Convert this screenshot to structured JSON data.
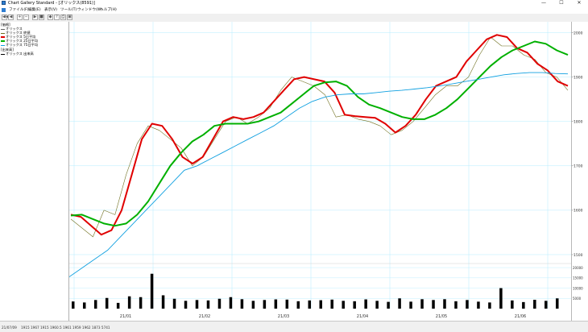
{
  "window": {
    "title": "Chart Gallery Standard - [オリックス(8591)]",
    "controls": {
      "minimize": "—",
      "maximize": "☐",
      "close": "✕"
    }
  },
  "menu": {
    "items": [
      "ファイル(F)",
      "編集(E)",
      "表示(V)",
      "ツール(T)",
      "ウィンドウ(W)",
      "ヘルプ(H)"
    ]
  },
  "toolbar": {
    "buttons": [
      "◀◀",
      "◀",
      "+",
      "−",
      "▶",
      "■",
      "◆",
      "?",
      "⎙",
      "▣"
    ]
  },
  "legend": {
    "price_header": "[価格]",
    "price_items": [
      {
        "label": "オリックス",
        "color": "#606060"
      },
      {
        "label": "オリックス  終値",
        "color": "#707020"
      },
      {
        "label": "オリックス  5日平均",
        "color": "#e00000"
      },
      {
        "label": "オリックス  25日平均",
        "color": "#00b000"
      },
      {
        "label": "オリックス  75日平均",
        "color": "#10a0e0"
      }
    ],
    "volume_header": "[出来高]",
    "volume_items": [
      {
        "label": "オリックス  出来高",
        "color": "#000000"
      }
    ]
  },
  "chart_data": {
    "type": "line",
    "chart_subtype": "candlestick-with-moving-averages",
    "x_tick_labels": [
      "21/01",
      "21/02",
      "21/03",
      "21/04",
      "21/05",
      "21/06"
    ],
    "price_axis_labels": [
      "1500",
      "1600",
      "1700",
      "1800",
      "1900",
      "2000"
    ],
    "volume_axis_labels": [
      "5000",
      "10000",
      "15000",
      "20000"
    ],
    "price_ylim": [
      1480,
      2010
    ],
    "volume_ylim": [
      0,
      22000
    ],
    "series": [
      {
        "name": "オリックス  5日平均",
        "color": "#e00000",
        "values": [
          1590,
          1585,
          1565,
          1545,
          1555,
          1600,
          1680,
          1760,
          1795,
          1790,
          1760,
          1720,
          1705,
          1720,
          1760,
          1800,
          1810,
          1805,
          1810,
          1820,
          1845,
          1870,
          1895,
          1900,
          1895,
          1890,
          1865,
          1815,
          1812,
          1810,
          1808,
          1795,
          1775,
          1790,
          1815,
          1850,
          1880,
          1890,
          1900,
          1935,
          1960,
          1985,
          1995,
          1990,
          1965,
          1955,
          1930,
          1915,
          1890,
          1880
        ]
      },
      {
        "name": "オリックス  25日平均",
        "color": "#00b000",
        "values": [
          1588,
          1590,
          1580,
          1570,
          1565,
          1570,
          1590,
          1620,
          1660,
          1700,
          1730,
          1755,
          1770,
          1790,
          1795,
          1795,
          1795,
          1800,
          1810,
          1820,
          1840,
          1860,
          1880,
          1888,
          1890,
          1880,
          1855,
          1838,
          1830,
          1820,
          1810,
          1805,
          1805,
          1815,
          1830,
          1850,
          1875,
          1900,
          1925,
          1945,
          1960,
          1970,
          1980,
          1975,
          1960,
          1950
        ]
      },
      {
        "name": "オリックス  75日平均",
        "color": "#10a0e0",
        "values": [
          1450,
          1470,
          1490,
          1510,
          1540,
          1570,
          1600,
          1630,
          1660,
          1690,
          1700,
          1715,
          1730,
          1745,
          1760,
          1775,
          1790,
          1810,
          1830,
          1845,
          1855,
          1860,
          1862,
          1862,
          1865,
          1868,
          1870,
          1873,
          1876,
          1880,
          1885,
          1890,
          1895,
          1900,
          1905,
          1908,
          1910,
          1910,
          1908,
          1907
        ]
      }
    ],
    "closes": [
      1580,
      1560,
      1540,
      1600,
      1590,
      1680,
      1750,
      1790,
      1780,
      1760,
      1740,
      1700,
      1720,
      1760,
      1800,
      1810,
      1795,
      1810,
      1830,
      1870,
      1900,
      1890,
      1880,
      1860,
      1810,
      1815,
      1805,
      1800,
      1790,
      1770,
      1780,
      1800,
      1830,
      1860,
      1880,
      1880,
      1900,
      1950,
      1990,
      1970,
      1970,
      1950,
      1940,
      1910,
      1900,
      1870
    ],
    "volumes": [
      3500,
      3000,
      4200,
      5200,
      2800,
      6000,
      5600,
      17000,
      6500,
      4800,
      3800,
      4200,
      4000,
      4800,
      5600,
      4600,
      3800,
      4200,
      4500,
      4400,
      3600,
      4000,
      4100,
      4400,
      3800,
      3600,
      4500,
      3800,
      3300,
      5000,
      3400,
      4600,
      4200,
      4600,
      3600,
      4200,
      3400,
      3000,
      10000,
      4000,
      3200,
      4300,
      3800,
      5000
    ]
  },
  "status": {
    "date": "21/07/09",
    "values": "1915  1967  1915  1960.5  1961  1959  1962  1873  5741"
  }
}
